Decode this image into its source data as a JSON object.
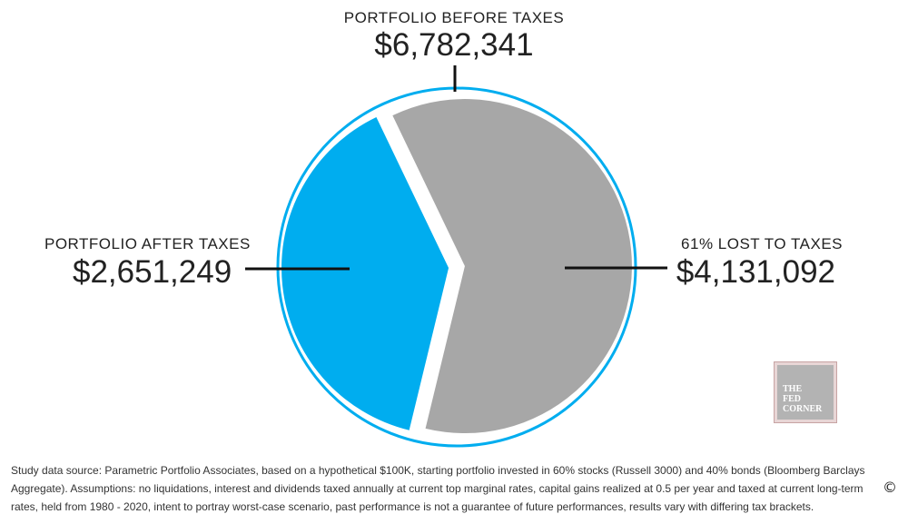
{
  "chart_data": {
    "type": "pie",
    "slices": [
      {
        "label": "PORTFOLIO AFTER TAXES",
        "value": 2651249,
        "display": "$2,651,249",
        "color": "#00adef"
      },
      {
        "label": "61% LOST TO TAXES",
        "value": 4131092,
        "display": "$4,131,092",
        "color": "#a7a7a7"
      }
    ],
    "total": {
      "label": "PORTFOLIO BEFORE TAXES",
      "value": 6782341,
      "display": "$6,782,341"
    },
    "ring_color": "#00adef"
  },
  "labels": {
    "top_heading": "PORTFOLIO BEFORE TAXES",
    "top_amount": "$6,782,341",
    "left_heading": "PORTFOLIO AFTER TAXES",
    "left_amount": "$2,651,249",
    "right_heading": "61% LOST TO TAXES",
    "right_amount": "$4,131,092"
  },
  "logo": {
    "text": "THE\nFED\nCORNER"
  },
  "footnote": "Study data source: Parametric Portfolio Associates, based on a hypothetical $100K, starting portfolio invested in 60% stocks (Russell 3000) and 40% bonds (Bloomberg Barclays Aggregate). Assumptions: no liquidations, interest and dividends taxed annually at current top marginal rates, capital gains realized at 0.5 per year and taxed at current long-term rates, held from 1980 - 2020, intent to portray worst-case scenario, past performance is not a guarantee of future performances, results vary with differing tax brackets.",
  "copyright": "©"
}
